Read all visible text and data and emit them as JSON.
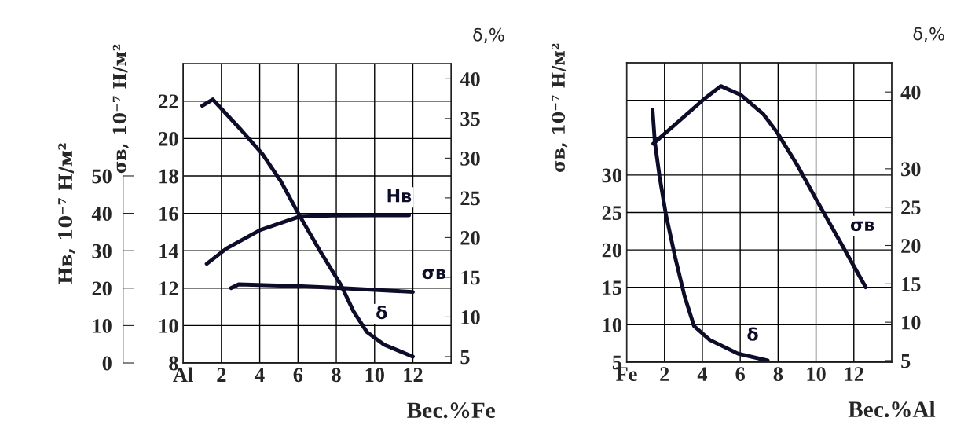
{
  "chart_data": [
    {
      "type": "line",
      "xlabel": "Вес.%Fe",
      "ylabel": "σв, 10⁻⁷ Н/м²",
      "y2label": "δ,%",
      "y3label": "Нв, 10⁻⁷ Н/м²",
      "grid": true,
      "legend": false,
      "marker": "none",
      "line_style": "solid",
      "xlim": [
        0,
        14
      ],
      "xticks": [
        {
          "value": 0,
          "label": "Al"
        },
        2,
        4,
        6,
        8,
        10,
        12
      ],
      "ylim": [
        8,
        24
      ],
      "yticks": [
        8,
        10,
        12,
        14,
        16,
        18,
        20,
        22
      ],
      "y2lim": [
        4.2,
        41.9
      ],
      "y2ticks": [
        5,
        10,
        15,
        20,
        25,
        30,
        35,
        40
      ],
      "y3lim": [
        0,
        80
      ],
      "y3ticks": [
        0,
        10,
        20,
        30,
        40,
        50
      ],
      "series": [
        {
          "name": "δ",
          "color": "#0d0d2a",
          "axis": "y2",
          "x": [
            1.0,
            1.55,
            3.05,
            4.15,
            5.1,
            6.05,
            7.15,
            8.25,
            8.9,
            9.6,
            10.5,
            12.0
          ],
          "values": [
            36.6,
            37.4,
            33.5,
            30.5,
            27.1,
            22.9,
            18.3,
            14.0,
            10.7,
            8.1,
            6.5,
            5.0
          ]
        },
        {
          "name": "Нв",
          "color": "#0d0d2a",
          "axis": "y3",
          "x": [
            1.23,
            2.26,
            4.0,
            6.05,
            7.8,
            10.15,
            11.8
          ],
          "values": [
            26.5,
            30.6,
            35.5,
            39.1,
            39.4,
            39.5,
            39.5
          ]
        },
        {
          "name": "σв",
          "color": "#0d0d2a",
          "axis": "y",
          "x": [
            2.5,
            2.9,
            6.2,
            8.26,
            12.0
          ],
          "values": [
            12.0,
            12.2,
            12.1,
            12.0,
            11.8
          ]
        }
      ]
    },
    {
      "type": "line",
      "xlabel": "Вес.%Al",
      "ylabel": "σв, 10⁻⁷ Н/м²",
      "y2label": "δ,%",
      "grid": true,
      "legend": false,
      "marker": "none",
      "line_style": "solid",
      "xlim": [
        0,
        14
      ],
      "xticks": [
        {
          "value": 0,
          "label": "Fe"
        },
        2,
        4,
        6,
        8,
        10,
        12
      ],
      "ylim": [
        5,
        45
      ],
      "yticks": [
        5,
        10,
        15,
        20,
        25,
        30,
        {
          "value": 35,
          "label": null
        },
        {
          "value": 40,
          "label": null
        }
      ],
      "y2lim": [
        4.8,
        43.8
      ],
      "y2ticks": [
        5,
        10,
        15,
        20,
        25,
        30,
        40
      ],
      "series": [
        {
          "name": "σв",
          "color": "#0d0d2a",
          "axis": "y",
          "x": [
            1.41,
            4.06,
            4.97,
            6.04,
            7.2,
            7.95,
            9.02,
            10.0,
            11.34,
            12.63
          ],
          "values": [
            34.2,
            40.1,
            41.9,
            40.7,
            38.2,
            35.7,
            31.3,
            26.8,
            20.8,
            15.0
          ]
        },
        {
          "name": "δ",
          "color": "#0d0d2a",
          "axis": "y2",
          "x": [
            1.37,
            1.49,
            1.74,
            2.07,
            2.57,
            3.06,
            3.56,
            4.39,
            5.88,
            7.45
          ],
          "values": [
            37.7,
            33.5,
            29.0,
            24.1,
            18.4,
            13.4,
            9.5,
            7.7,
            5.9,
            5.0
          ]
        }
      ]
    }
  ]
}
